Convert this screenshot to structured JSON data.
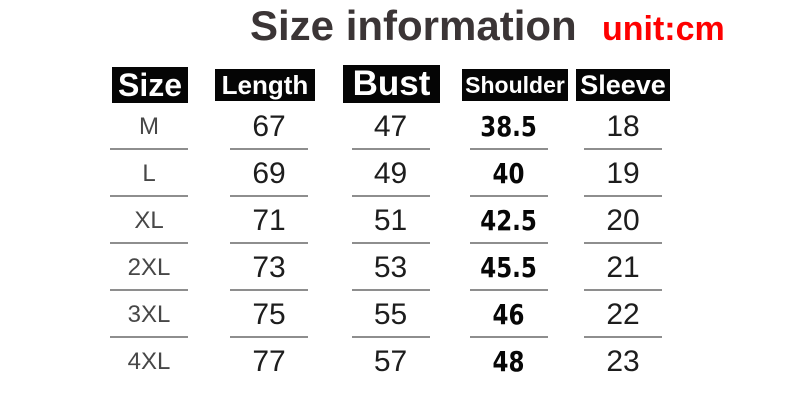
{
  "title": "Size information",
  "unit_label": "unit:cm",
  "colors": {
    "accent_red": "#fe0000",
    "header_bg": "#050505",
    "header_text": "#ffffff",
    "title_text": "#3b3536",
    "number_text": "#1d1d1d",
    "underline_gray": "#8e8e8e"
  },
  "chart_data": {
    "type": "table",
    "title": "Size information",
    "unit": "cm",
    "columns": [
      "Size",
      "Length",
      "Bust",
      "Shoulder",
      "Sleeve"
    ],
    "rows": [
      [
        "M",
        "67",
        "47",
        "38.5",
        "18"
      ],
      [
        "L",
        "69",
        "49",
        "40",
        "19"
      ],
      [
        "XL",
        "71",
        "51",
        "42.5",
        "20"
      ],
      [
        "2XL",
        "73",
        "53",
        "45.5",
        "21"
      ],
      [
        "3XL",
        "75",
        "55",
        "46",
        "22"
      ],
      [
        "4XL",
        "77",
        "57",
        "48",
        "23"
      ]
    ]
  }
}
